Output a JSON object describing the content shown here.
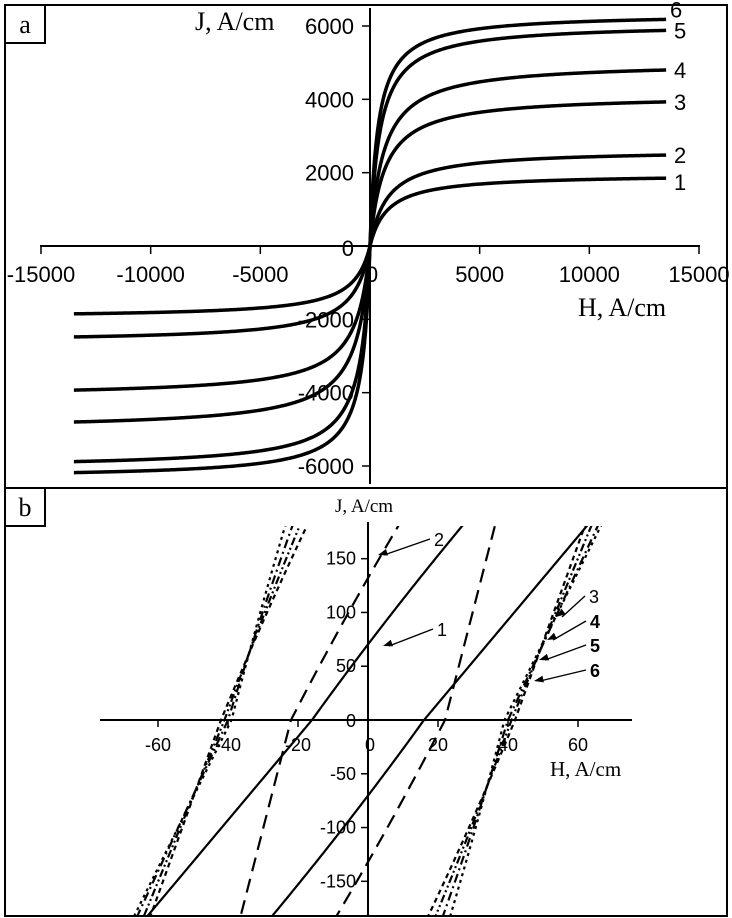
{
  "chart_data": [
    {
      "type": "line",
      "panel_label": "a",
      "xlabel": "H, A/cm",
      "ylabel": "J, A/cm",
      "xlim": [
        -15000,
        15000
      ],
      "ylim": [
        -6500,
        6500
      ],
      "x_ticks": [
        "-15000",
        "-10000",
        "-5000",
        "0",
        "5000",
        "10000",
        "15000"
      ],
      "y_ticks": [
        "-6000",
        "-4000",
        "-2000",
        "0",
        "2000",
        "4000",
        "6000"
      ],
      "x_tick_values": [
        -15000,
        -10000,
        -5000,
        0,
        5000,
        10000,
        15000
      ],
      "y_tick_values": [
        -6000,
        -4000,
        -2000,
        0,
        2000,
        4000,
        6000
      ],
      "x_range": [
        -13500,
        13500
      ],
      "series": [
        {
          "label": "1",
          "saturation": 1850,
          "x_half": 800,
          "right_end": 1850,
          "left_end": -1850
        },
        {
          "label": "2",
          "saturation": 2500,
          "x_half": 800,
          "right_end": 2480,
          "left_end": -2480
        },
        {
          "label": "3",
          "saturation": 4000,
          "x_half": 650,
          "right_end": 3930,
          "left_end": -3930
        },
        {
          "label": "4",
          "saturation": 4880,
          "x_half": 600,
          "right_end": 4800,
          "left_end": -4800
        },
        {
          "label": "5",
          "saturation": 6000,
          "x_half": 430,
          "right_end": 5880,
          "left_end": -5880
        },
        {
          "label": "6",
          "saturation": 6230,
          "x_half": 350,
          "right_end": 6180,
          "left_end": -6180
        }
      ]
    },
    {
      "type": "line",
      "panel_label": "b",
      "xlabel": "H, A/cm",
      "ylabel": "J, A/cm",
      "xlim": [
        -75,
        75
      ],
      "ylim": [
        -185,
        185
      ],
      "x_ticks": [
        "-60",
        "-40",
        "-20",
        "0",
        "20",
        "40",
        "60"
      ],
      "y_ticks": [
        "-150",
        "-100",
        "-50",
        "0",
        "50",
        "100",
        "150"
      ],
      "x_tick_values": [
        -60,
        -40,
        -20,
        0,
        20,
        40,
        60
      ],
      "y_tick_values": [
        -150,
        -100,
        -50,
        0,
        50,
        100,
        150
      ],
      "series": [
        {
          "label": "1",
          "style": "solid",
          "coercivity": 16,
          "j_at_zero": 58,
          "upper_top_h": 26,
          "upper_bottom_h": -65
        },
        {
          "label": "2",
          "style": "dashed",
          "coercivity": 22,
          "j_at_zero": 135,
          "upper_top_h": 8,
          "upper_bottom_h": -37
        },
        {
          "label": "3",
          "style": "dotted",
          "coercivity": 39,
          "j_at_zero": 0,
          "upper_top_h": -24,
          "upper_bottom_h": -68
        },
        {
          "label": "4",
          "style": "dash-dot",
          "coercivity": 40,
          "j_at_zero": 0,
          "upper_top_h": -22,
          "upper_bottom_h": -67
        },
        {
          "label": "5",
          "style": "dash-dot-dot",
          "coercivity": 41,
          "j_at_zero": 0,
          "upper_top_h": -20,
          "upper_bottom_h": -65
        },
        {
          "label": "6",
          "style": "short-dash",
          "coercivity": 42,
          "j_at_zero": 0,
          "upper_top_h": -18,
          "upper_bottom_h": -63
        }
      ]
    }
  ]
}
